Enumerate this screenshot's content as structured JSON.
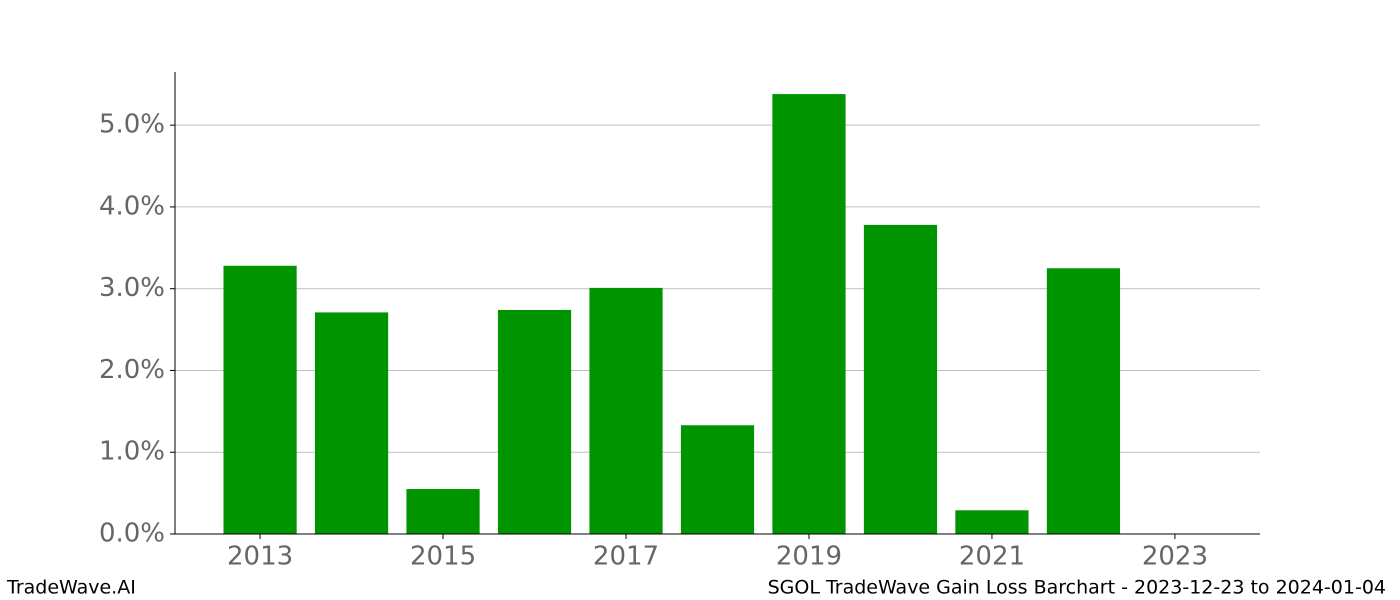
{
  "chart_data": {
    "type": "bar",
    "x": [
      2013,
      2014,
      2015,
      2016,
      2017,
      2018,
      2019,
      2020,
      2021,
      2022
    ],
    "values": [
      3.28,
      2.71,
      0.55,
      2.74,
      3.01,
      1.33,
      5.38,
      3.78,
      0.29,
      3.25
    ],
    "color": "#009400",
    "xlim": [
      2012.07,
      2023.93
    ],
    "xticks": [
      2013,
      2015,
      2017,
      2019,
      2021,
      2023
    ],
    "ylim": [
      0,
      5.65
    ],
    "yticks": [
      {
        "value": 0,
        "label": "0.0%"
      },
      {
        "value": 1,
        "label": "1.0%"
      },
      {
        "value": 2,
        "label": "2.0%"
      },
      {
        "value": 3,
        "label": "3.0%"
      },
      {
        "value": 4,
        "label": "4.0%"
      },
      {
        "value": 5,
        "label": "5.0%"
      }
    ],
    "grid": true,
    "footer_left": "TradeWave.AI",
    "footer_right": "SGOL TradeWave Gain Loss Barchart - 2023-12-23 to 2024-01-04"
  }
}
